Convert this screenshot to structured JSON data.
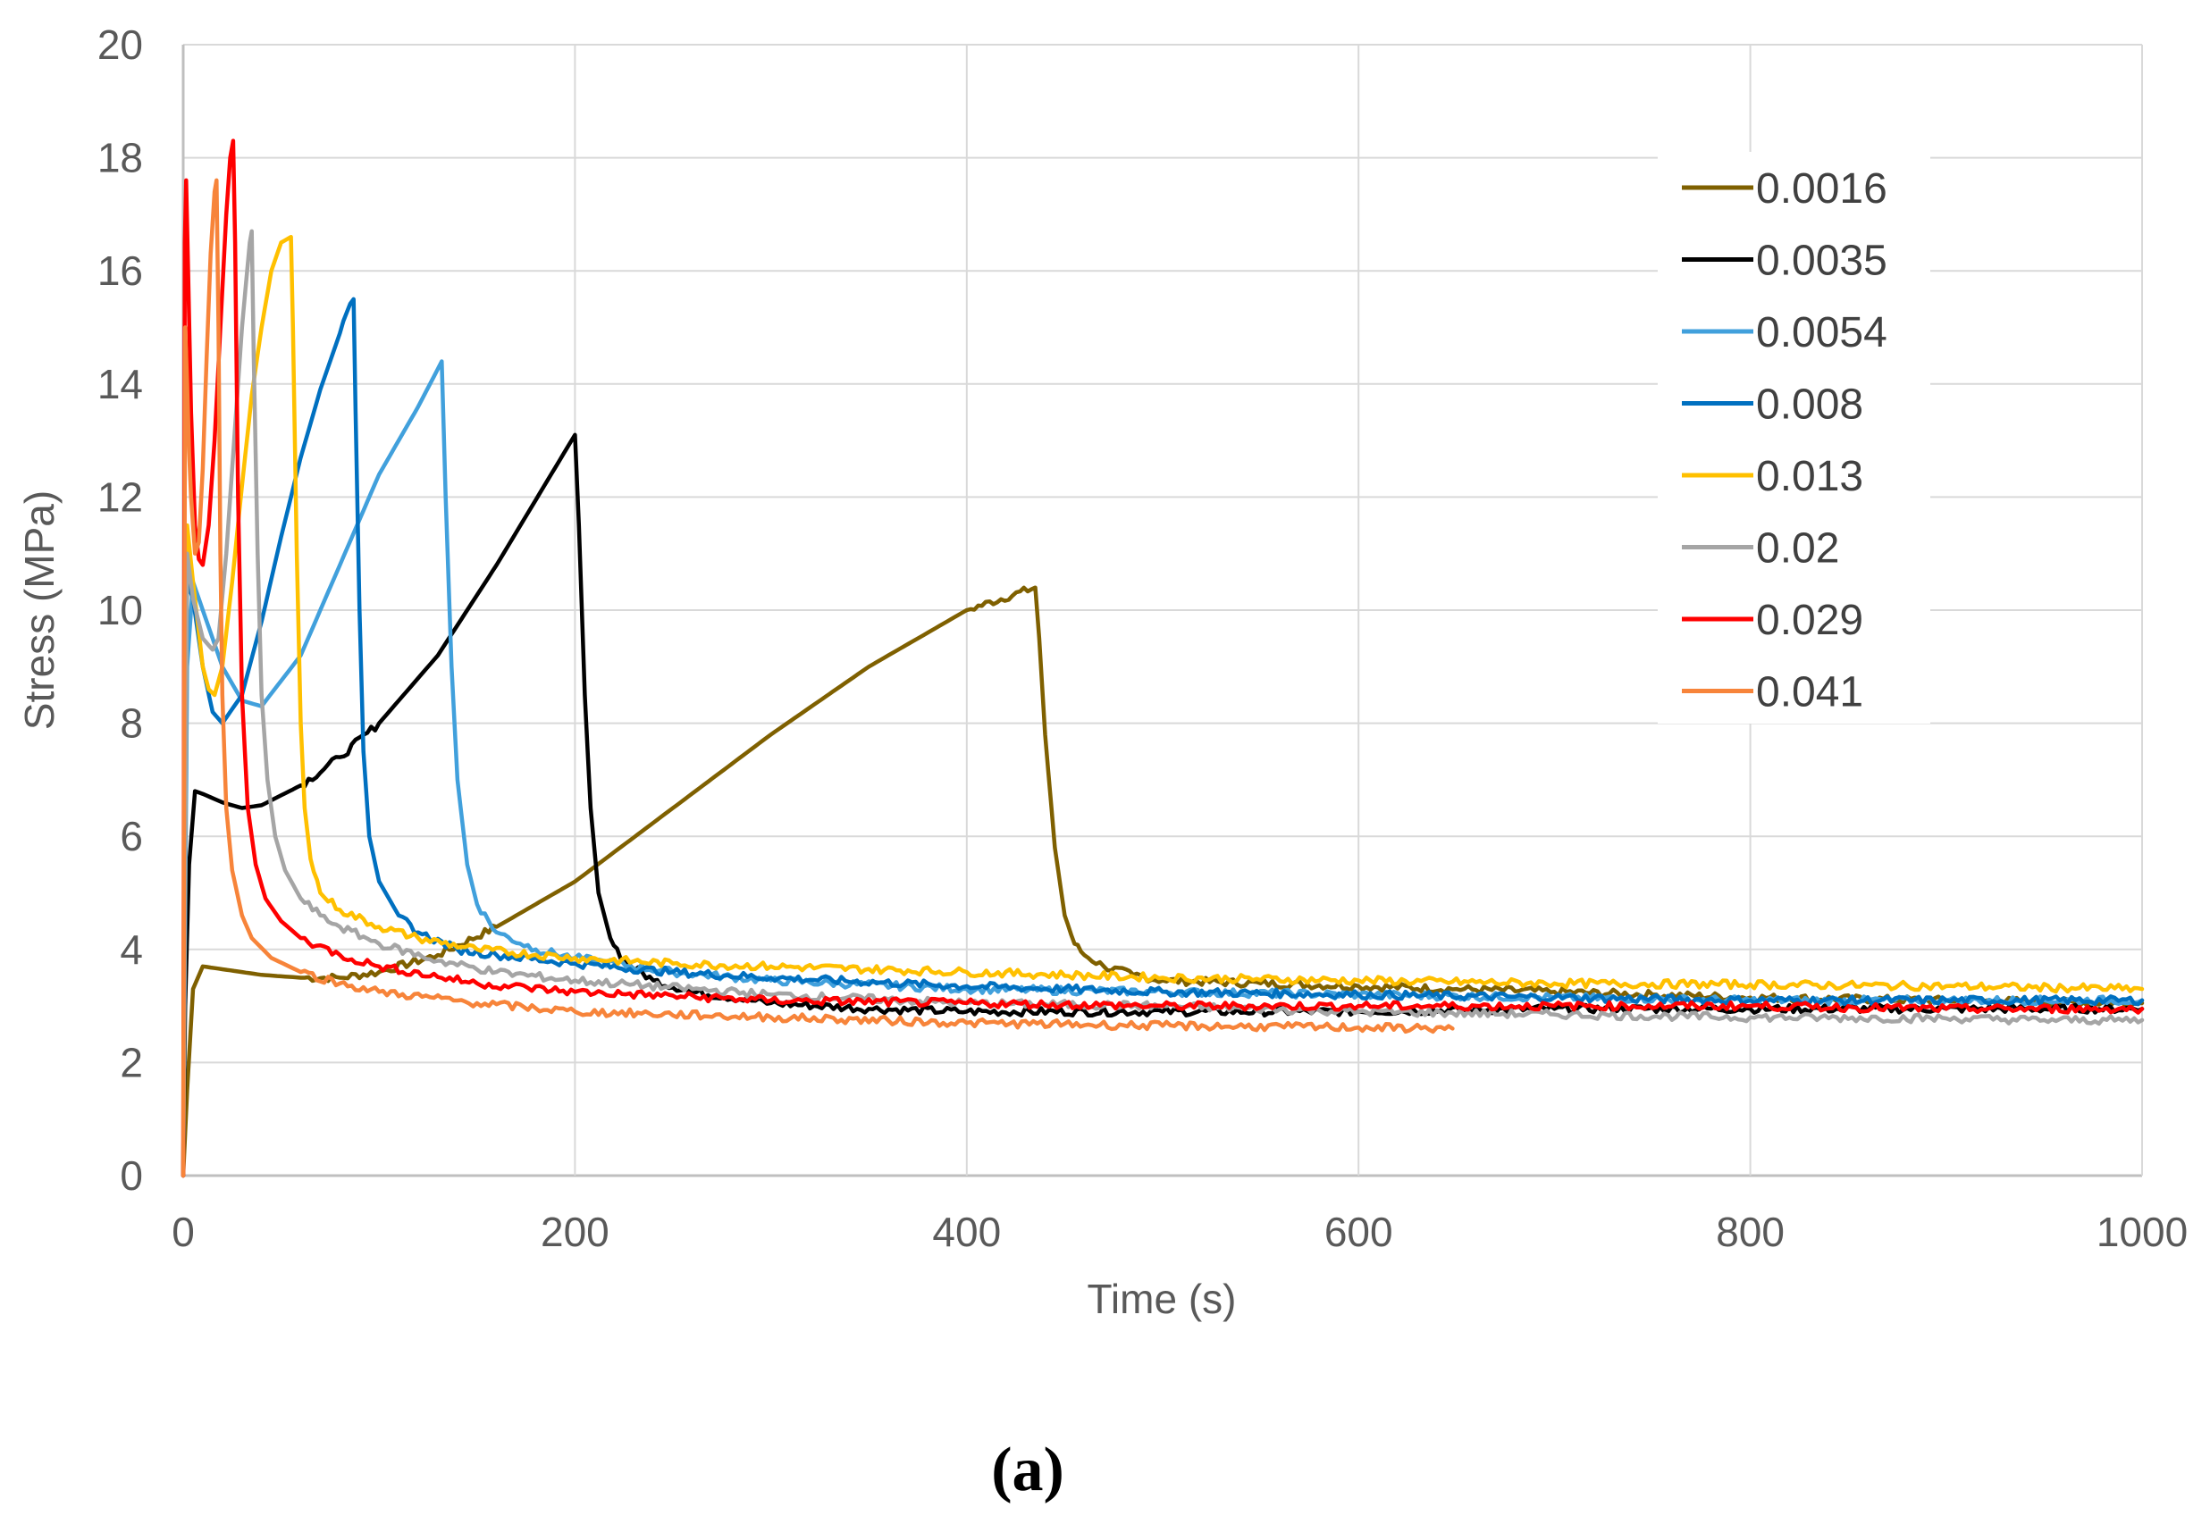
{
  "caption": "(a)",
  "chart_data": {
    "type": "line",
    "title": "",
    "xlabel": "Time (s)",
    "ylabel": "Stress (MPa)",
    "xlim": [
      0,
      1000
    ],
    "ylim": [
      0,
      20
    ],
    "xticks": [
      0,
      200,
      400,
      600,
      800,
      1000
    ],
    "yticks": [
      0,
      2,
      4,
      6,
      8,
      10,
      12,
      14,
      16,
      18,
      20
    ],
    "xtick_labels": [
      "0",
      "200",
      "400",
      "600",
      "800",
      "1000"
    ],
    "ytick_labels": [
      "0",
      "2",
      "4",
      "6",
      "8",
      "10",
      "12",
      "14",
      "16",
      "18",
      "20"
    ],
    "grid": true,
    "legend_position": "top-right",
    "series": [
      {
        "name": "0.0016",
        "color": "#7f6000",
        "x": [
          0,
          2,
          5,
          10,
          20,
          40,
          60,
          80,
          100,
          130,
          160,
          200,
          250,
          300,
          350,
          400,
          435,
          437,
          440,
          445,
          450,
          455,
          460,
          470,
          485,
          500,
          550,
          600,
          650,
          700,
          750,
          800,
          900,
          1000
        ],
        "y": [
          0,
          1.5,
          3.3,
          3.7,
          3.65,
          3.55,
          3.5,
          3.5,
          3.6,
          3.9,
          4.4,
          5.2,
          6.5,
          7.8,
          9.0,
          10.0,
          10.4,
          9.5,
          7.8,
          5.8,
          4.6,
          4.1,
          3.9,
          3.7,
          3.55,
          3.45,
          3.4,
          3.35,
          3.3,
          3.25,
          3.2,
          3.15,
          3.1,
          3.05
        ]
      },
      {
        "name": "0.0035",
        "color": "#000000",
        "x": [
          0,
          1,
          3,
          6,
          10,
          20,
          30,
          40,
          60,
          80,
          100,
          130,
          160,
          200,
          202,
          205,
          208,
          212,
          218,
          225,
          240,
          260,
          300,
          350,
          400,
          500,
          600,
          700,
          800,
          900,
          1000
        ],
        "y": [
          0,
          3.0,
          5.5,
          6.8,
          6.75,
          6.6,
          6.5,
          6.55,
          6.9,
          7.4,
          8.0,
          9.2,
          10.8,
          13.1,
          11.5,
          8.5,
          6.5,
          5.0,
          4.2,
          3.8,
          3.45,
          3.25,
          3.05,
          2.95,
          2.9,
          2.9,
          2.9,
          2.95,
          2.95,
          2.95,
          2.95
        ]
      },
      {
        "name": "0.0054",
        "color": "#41a0dc",
        "x": [
          0,
          2,
          5,
          10,
          20,
          30,
          40,
          60,
          80,
          100,
          120,
          132,
          134,
          137,
          140,
          145,
          150,
          160,
          180,
          200,
          250,
          300,
          400,
          500,
          600,
          700,
          800,
          900,
          1000
        ],
        "y": [
          0,
          9.0,
          10.5,
          10.0,
          9.0,
          8.4,
          8.3,
          9.2,
          10.8,
          12.4,
          13.6,
          14.4,
          12.0,
          9.0,
          7.0,
          5.5,
          4.8,
          4.3,
          4.0,
          3.85,
          3.6,
          3.45,
          3.3,
          3.25,
          3.2,
          3.15,
          3.1,
          3.1,
          3.1
        ]
      },
      {
        "name": "0.008",
        "color": "#0070c0",
        "x": [
          0,
          2,
          5,
          10,
          15,
          20,
          30,
          40,
          50,
          60,
          70,
          80,
          87,
          88,
          90,
          92,
          95,
          100,
          110,
          120,
          140,
          160,
          200,
          250,
          300,
          400,
          500,
          600,
          700,
          800,
          900,
          1000
        ],
        "y": [
          0,
          10.5,
          10.2,
          9.0,
          8.2,
          8.0,
          8.5,
          9.8,
          11.3,
          12.7,
          13.9,
          14.9,
          15.5,
          13.5,
          10.0,
          7.5,
          6.0,
          5.2,
          4.6,
          4.3,
          4.0,
          3.9,
          3.75,
          3.6,
          3.5,
          3.35,
          3.25,
          3.2,
          3.15,
          3.1,
          3.1,
          3.1
        ]
      },
      {
        "name": "0.013",
        "color": "#ffc000",
        "x": [
          0,
          2,
          5,
          10,
          13,
          16,
          20,
          25,
          30,
          35,
          40,
          45,
          50,
          55,
          56,
          58,
          60,
          62,
          65,
          70,
          80,
          100,
          120,
          150,
          200,
          250,
          300,
          400,
          500,
          600,
          700,
          800,
          900,
          1000
        ],
        "y": [
          0,
          11.5,
          10.5,
          9.0,
          8.6,
          8.5,
          9.0,
          10.5,
          12.2,
          13.8,
          15.0,
          16.0,
          16.5,
          16.6,
          15.0,
          11.0,
          8.0,
          6.5,
          5.6,
          5.0,
          4.7,
          4.4,
          4.2,
          4.0,
          3.85,
          3.75,
          3.7,
          3.6,
          3.5,
          3.45,
          3.4,
          3.38,
          3.35,
          3.3
        ]
      },
      {
        "name": "0.02",
        "color": "#a5a5a5",
        "x": [
          0,
          2,
          5,
          10,
          15,
          18,
          22,
          26,
          30,
          34,
          35,
          36,
          38,
          40,
          43,
          47,
          52,
          60,
          70,
          80,
          100,
          130,
          160,
          200,
          300,
          400,
          500,
          600,
          700,
          800,
          900,
          950,
          1000
        ],
        "y": [
          0,
          11.0,
          10.2,
          9.5,
          9.3,
          9.5,
          11.0,
          13.0,
          15.0,
          16.5,
          16.7,
          14.5,
          11.0,
          8.5,
          7.0,
          6.0,
          5.4,
          4.9,
          4.6,
          4.4,
          4.1,
          3.8,
          3.6,
          3.45,
          3.2,
          3.05,
          3.0,
          2.9,
          2.85,
          2.8,
          2.78,
          2.75,
          2.75
        ]
      },
      {
        "name": "0.029",
        "color": "#ff0000",
        "x": [
          0,
          0.8,
          1.5,
          2.5,
          4,
          6,
          8,
          10,
          13,
          16,
          19,
          22,
          24,
          25.5,
          26.5,
          28,
          30,
          33,
          37,
          42,
          50,
          60,
          80,
          100,
          150,
          200,
          300,
          400,
          500,
          600,
          700,
          800,
          900,
          1000
        ],
        "y": [
          0,
          16.5,
          17.6,
          16.0,
          13.5,
          11.5,
          10.9,
          10.8,
          11.5,
          13.0,
          15.0,
          17.0,
          18.0,
          18.3,
          16.5,
          12.0,
          8.5,
          6.5,
          5.5,
          4.9,
          4.5,
          4.2,
          3.9,
          3.7,
          3.4,
          3.25,
          3.1,
          3.05,
          3.0,
          3.0,
          3.0,
          3.0,
          2.95,
          2.95
        ]
      },
      {
        "name": "0.041",
        "color": "#f7843a",
        "x": [
          0,
          1,
          2,
          3,
          4,
          5,
          6,
          8,
          10,
          12,
          14,
          16,
          17,
          18,
          19,
          20,
          22,
          25,
          30,
          35,
          45,
          60,
          80,
          100,
          150,
          200,
          300,
          400,
          500,
          600,
          648
        ],
        "y": [
          0,
          15.0,
          14.0,
          12.8,
          12.0,
          11.5,
          11.0,
          11.2,
          12.5,
          14.5,
          16.3,
          17.4,
          17.6,
          15.0,
          11.0,
          8.5,
          6.5,
          5.4,
          4.6,
          4.2,
          3.85,
          3.6,
          3.4,
          3.25,
          3.05,
          2.9,
          2.8,
          2.7,
          2.65,
          2.62,
          2.6
        ]
      }
    ]
  }
}
